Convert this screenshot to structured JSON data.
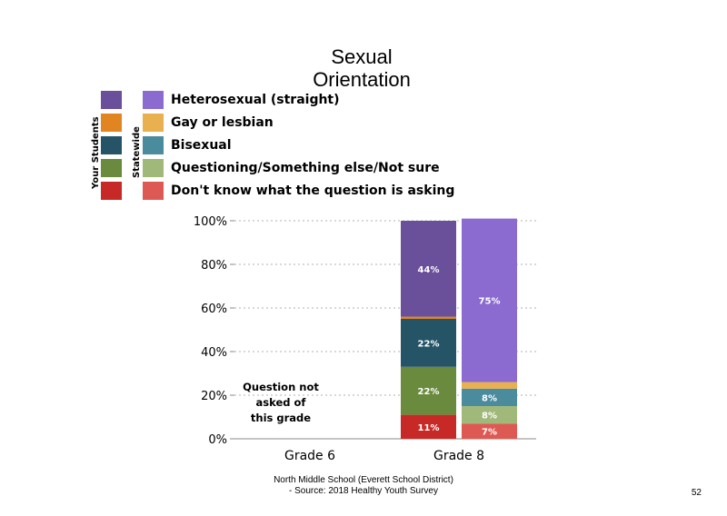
{
  "title_line1": "Sexual",
  "title_line2": "Orientation",
  "legend": {
    "your_students_label": "Your Students",
    "statewide_label": "Statewide",
    "items": [
      {
        "label": "Heterosexual (straight)",
        "your_color": "#6a4f9b",
        "state_color": "#8c6bd0"
      },
      {
        "label": "Gay or lesbian",
        "your_color": "#e0851f",
        "state_color": "#e8b04e"
      },
      {
        "label": "Bisexual",
        "your_color": "#255467",
        "state_color": "#4a8b9d"
      },
      {
        "label": "Questioning/Something else/Not sure",
        "your_color": "#6a8a3e",
        "state_color": "#a0b87a"
      },
      {
        "label": "Don't know what the question is asking",
        "your_color": "#c72a26",
        "state_color": "#dd5a54"
      }
    ]
  },
  "chart_data": {
    "type": "bar",
    "stacked": true,
    "categories": [
      "Grade 6",
      "Grade 8"
    ],
    "ylim": [
      0,
      100
    ],
    "y_ticks": [
      "0%",
      "20%",
      "40%",
      "60%",
      "80%",
      "100%"
    ],
    "grid": true,
    "grade6_note": [
      "Question not",
      "asked of",
      "this grade"
    ],
    "stack_order": [
      "Don't know what the question is asking",
      "Questioning/Something else/Not sure",
      "Bisexual",
      "Gay or lesbian",
      "Heterosexual (straight)"
    ],
    "bars": [
      {
        "category": "Grade 8",
        "group": "Your Students",
        "values": [
          11,
          22,
          22,
          1,
          44
        ],
        "labels": [
          "11%",
          "22%",
          "22%",
          "",
          "44%"
        ]
      },
      {
        "category": "Grade 8",
        "group": "Statewide",
        "values": [
          7,
          8,
          8,
          3,
          75
        ],
        "labels": [
          "7%",
          "8%",
          "8%",
          "",
          "75%"
        ]
      }
    ]
  },
  "footer_line1": "North Middle School (Everett School District)",
  "footer_line2": "- Source: 2018 Healthy Youth Survey",
  "page_number": "52"
}
